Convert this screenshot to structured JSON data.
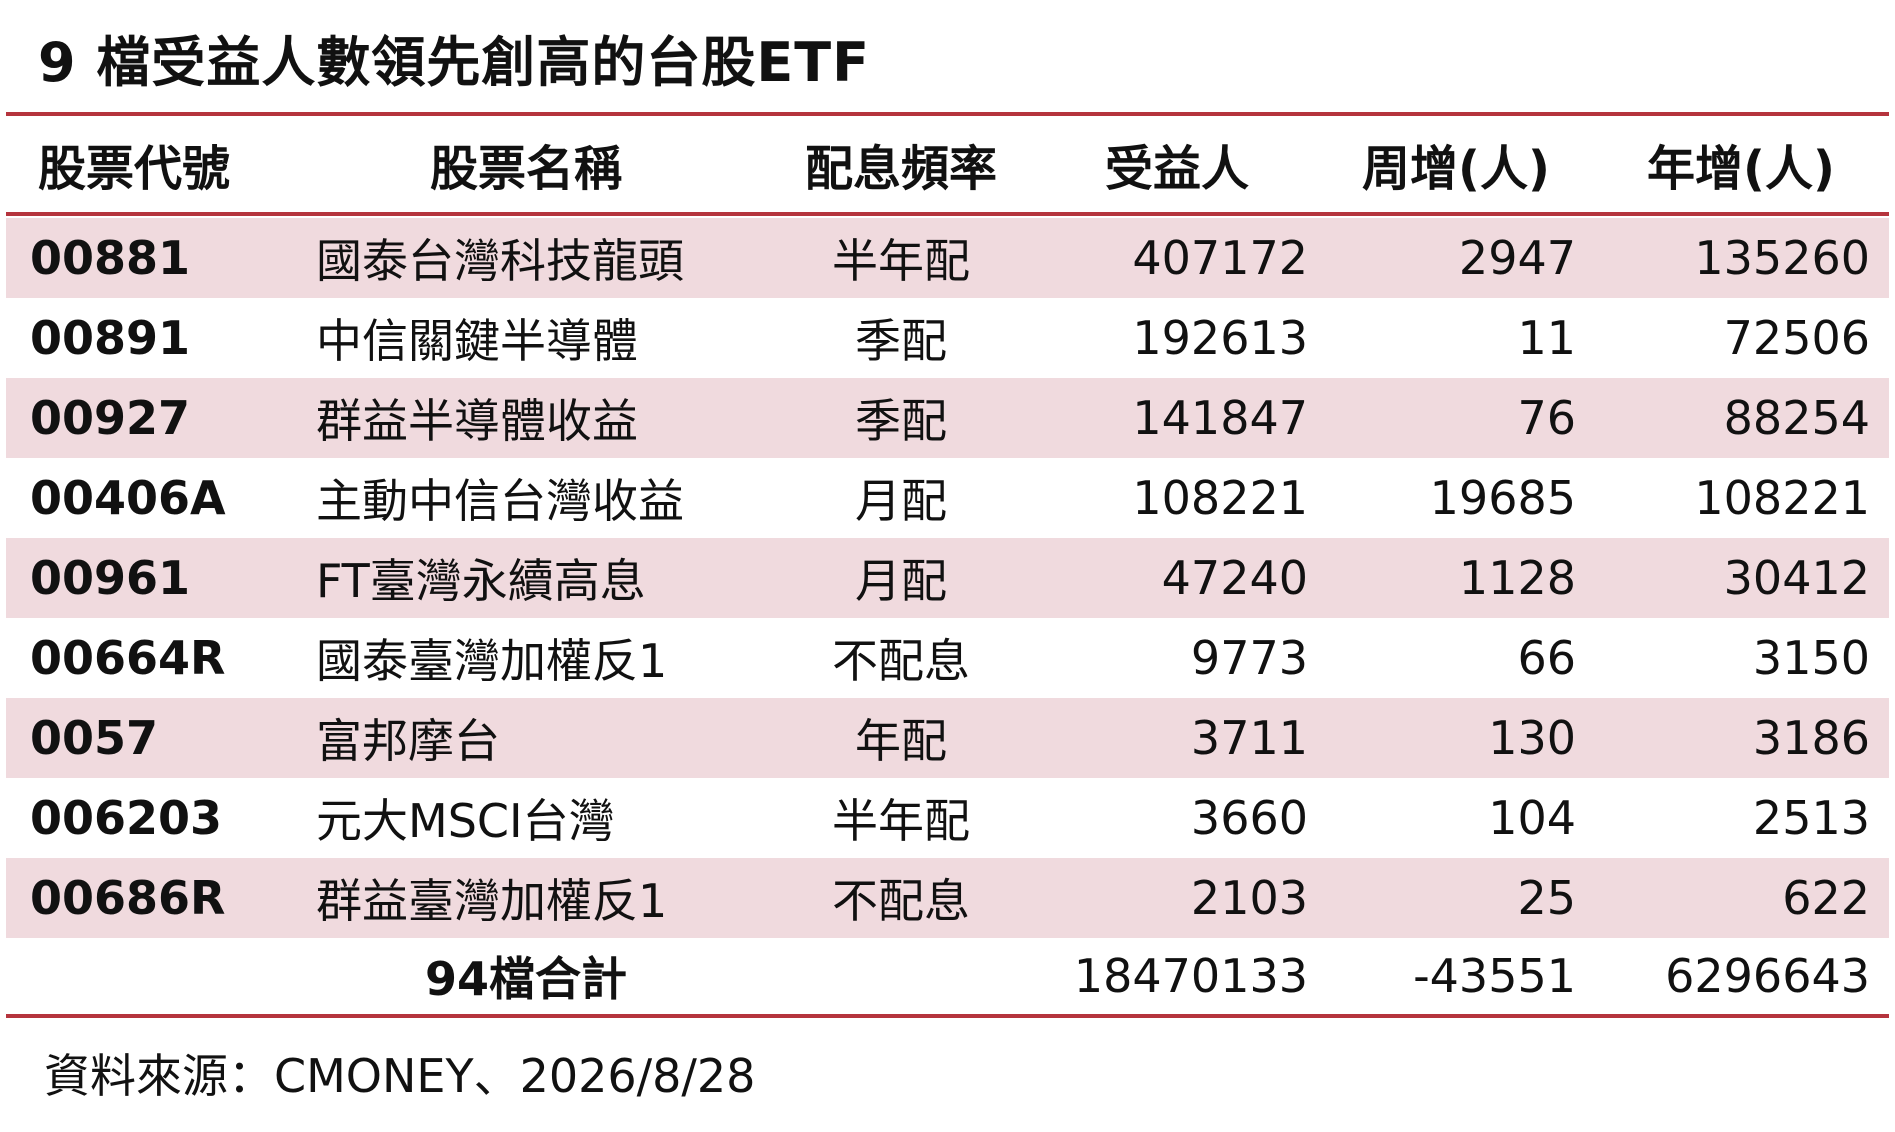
{
  "title": "9 檔受益人數領先創高的台股ETF",
  "headers": {
    "code": "股票代號",
    "name": "股票名稱",
    "frequency": "配息頻率",
    "holders": "受益人",
    "weekly": "周增(人)",
    "yearly": "年增(人)"
  },
  "rows": [
    {
      "code": "00881",
      "name": "國泰台灣科技龍頭",
      "frequency": "半年配",
      "holders": "407172",
      "weekly": "2947",
      "yearly": "135260"
    },
    {
      "code": "00891",
      "name": "中信關鍵半導體",
      "frequency": "季配",
      "holders": "192613",
      "weekly": "11",
      "yearly": "72506"
    },
    {
      "code": "00927",
      "name": "群益半導體收益",
      "frequency": "季配",
      "holders": "141847",
      "weekly": "76",
      "yearly": "88254"
    },
    {
      "code": "00406A",
      "name": "主動中信台灣收益",
      "frequency": "月配",
      "holders": "108221",
      "weekly": "19685",
      "yearly": "108221"
    },
    {
      "code": "00961",
      "name": "FT臺灣永續高息",
      "frequency": "月配",
      "holders": "47240",
      "weekly": "1128",
      "yearly": "30412"
    },
    {
      "code": "00664R",
      "name": "國泰臺灣加權反1",
      "frequency": "不配息",
      "holders": "9773",
      "weekly": "66",
      "yearly": "3150"
    },
    {
      "code": "0057",
      "name": "富邦摩台",
      "frequency": "年配",
      "holders": "3711",
      "weekly": "130",
      "yearly": "3186"
    },
    {
      "code": "006203",
      "name": "元大MSCI台灣",
      "frequency": "半年配",
      "holders": "3660",
      "weekly": "104",
      "yearly": "2513"
    },
    {
      "code": "00686R",
      "name": "群益臺灣加權反1",
      "frequency": "不配息",
      "holders": "2103",
      "weekly": "25",
      "yearly": "622"
    }
  ],
  "total": {
    "label": "94檔合計",
    "holders": "18470133",
    "weekly": "-43551",
    "yearly": "6296643"
  },
  "source": "資料來源：CMONEY、2026/8/28",
  "colors": {
    "accent_rule": "#b5343d",
    "row_shade": "#f0dade"
  }
}
